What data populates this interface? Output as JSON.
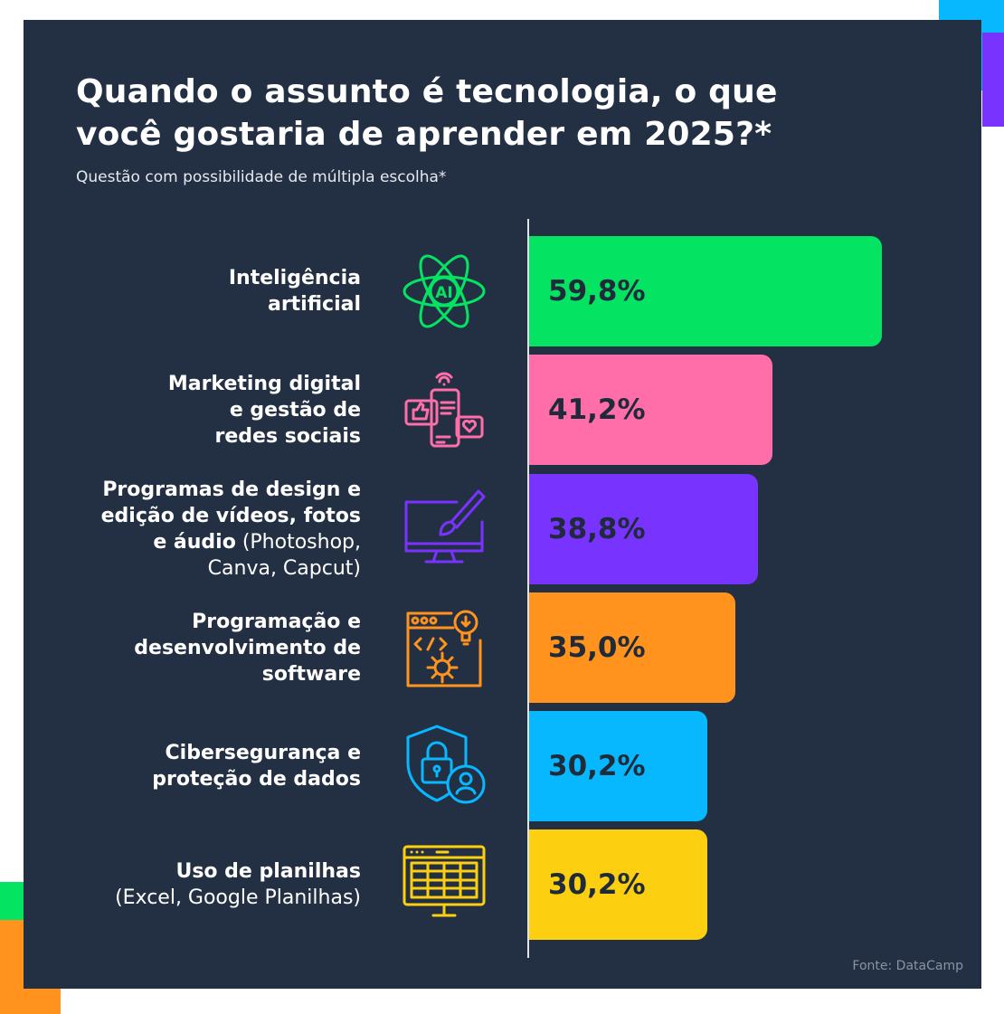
{
  "colors": {
    "background": "#233044",
    "text": "#ffffff",
    "value_text": "#1f2a3a"
  },
  "chart_data": {
    "type": "bar",
    "orientation": "horizontal",
    "title": "Quando o assunto é tecnologia, o que você gostaria de aprender em 2025?*",
    "subtitle": "Questão com possibilidade de múltipla escolha*",
    "xlim": [
      0,
      60
    ],
    "grid": false,
    "source": "Fonte: DataCamp",
    "categories": [
      {
        "bold": "Inteligência\nartificial",
        "normal": "",
        "icon": "ai-atom-icon",
        "color": "#05e363"
      },
      {
        "bold": "Marketing digital\ne gestão de\nredes sociais",
        "normal": "",
        "icon": "social-media-phone-icon",
        "color": "#ff6ea9"
      },
      {
        "bold": "Programas de design e\nedição de vídeos, fotos\ne áudio",
        "normal": " (Photoshop,\nCanva, Capcut)",
        "icon": "design-monitor-brush-icon",
        "color": "#7933ff"
      },
      {
        "bold": "Programação e\ndesenvolvimento de\nsoftware",
        "normal": "",
        "icon": "code-window-gear-icon",
        "color": "#ff931e"
      },
      {
        "bold": "Cibersegurança e\nproteção de dados",
        "normal": "",
        "icon": "security-shield-lock-icon",
        "color": "#08b8ff"
      },
      {
        "bold": "Uso de planilhas",
        "normal": "\n(Excel, Google Planilhas)",
        "icon": "spreadsheet-monitor-icon",
        "color": "#fccf10"
      }
    ],
    "values": [
      59.8,
      41.2,
      38.8,
      35.0,
      30.2,
      30.2
    ],
    "value_labels": [
      "59,8%",
      "41,2%",
      "38,8%",
      "35,0%",
      "30,2%",
      "30,2%"
    ]
  }
}
